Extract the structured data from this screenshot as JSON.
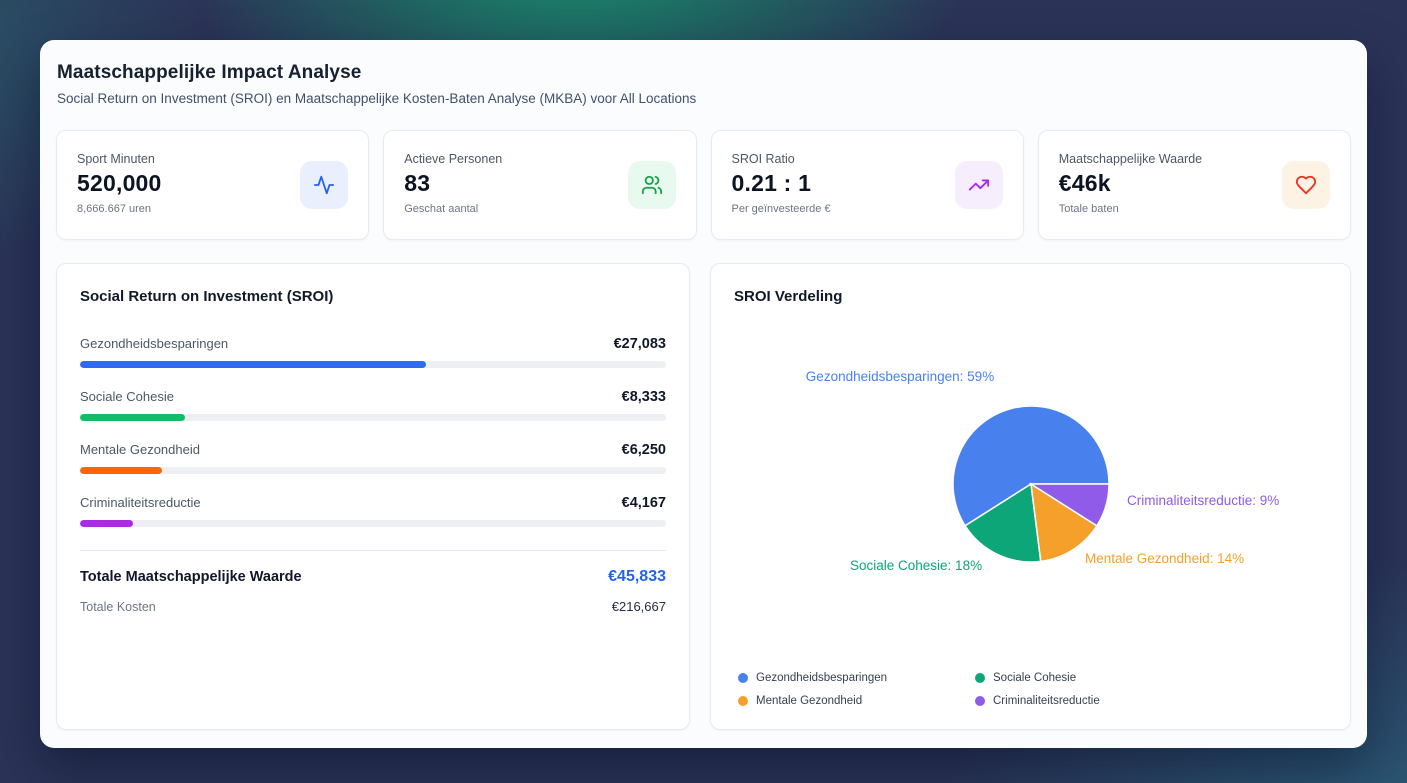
{
  "header": {
    "title": "Maatschappelijke Impact Analyse",
    "subtitle": "Social Return on Investment (SROI) en Maatschappelijke Kosten-Baten Analyse (MKBA) voor All Locations"
  },
  "stats": [
    {
      "label": "Sport Minuten",
      "value": "520,000",
      "sub": "8,666.667 uren",
      "icon": "activity-icon",
      "icon_color": "#2563eb",
      "icon_bg": "#e9effc"
    },
    {
      "label": "Actieve Personen",
      "value": "83",
      "sub": "Geschat aantal",
      "icon": "users-icon",
      "icon_color": "#16a34a",
      "icon_bg": "#e8f9ef"
    },
    {
      "label": "SROI Ratio",
      "value": "0.21 : 1",
      "sub": "Per geïnvesteerde €",
      "icon": "trending-up-icon",
      "icon_color": "#a928ec",
      "icon_bg": "#f7eefd"
    },
    {
      "label": "Maatschappelijke Waarde",
      "value": "€46k",
      "sub": "Totale baten",
      "icon": "heart-icon",
      "icon_color": "#ef2f20",
      "icon_bg": "#fdf3e4"
    }
  ],
  "sroi_panel": {
    "title": "Social Return on Investment (SROI)",
    "items": [
      {
        "label": "Gezondheidsbesparingen",
        "value": "€27,083",
        "percent": 59,
        "color": "#2f6bf0"
      },
      {
        "label": "Sociale Cohesie",
        "value": "€8,333",
        "percent": 18,
        "color": "#0fbd68"
      },
      {
        "label": "Mentale Gezondheid",
        "value": "€6,250",
        "percent": 14,
        "color": "#f9660a"
      },
      {
        "label": "Criminaliteitsreductie",
        "value": "€4,167",
        "percent": 9,
        "color": "#ab2be5"
      }
    ],
    "total_label": "Totale Maatschappelijke Waarde",
    "total_value": "€45,833",
    "total_color": "#2563eb",
    "costs_label": "Totale Kosten",
    "costs_value": "€216,667"
  },
  "pie_panel": {
    "title": "SROI Verdeling"
  },
  "chart_data": {
    "type": "pie",
    "title": "SROI Verdeling",
    "labels": [
      "Gezondheidsbesparingen",
      "Sociale Cohesie",
      "Mentale Gezondheid",
      "Criminaliteitsreductie"
    ],
    "values_pct": [
      59,
      18,
      14,
      9
    ],
    "values_eur": [
      27083,
      8333,
      6250,
      4167
    ],
    "colors": [
      "#4880ee",
      "#0ca678",
      "#f5a02b",
      "#8f5be8"
    ],
    "start_angle_deg": 0,
    "direction": "counterclockwise",
    "callout_labels": [
      "Gezondheidsbesparingen: 59%",
      "Sociale Cohesie: 18%",
      "Mentale Gezondheid: 14%",
      "Criminaliteitsreductie: 9%"
    ],
    "legend": [
      "Gezondheidsbesparingen",
      "Sociale Cohesie",
      "Mentale Gezondheid",
      "Criminaliteitsreductie"
    ],
    "legend_position": "bottom"
  }
}
